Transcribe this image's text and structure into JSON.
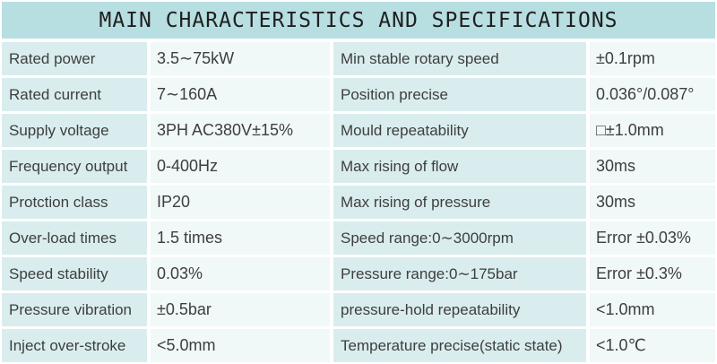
{
  "title": "MAIN CHARACTERISTICS AND SPECIFICATIONS",
  "colors": {
    "header_bg": "#b7dee1",
    "label_bg": "#d9edee",
    "value_bg": "#f0f8f8",
    "text": "#3e3e3e"
  },
  "table": {
    "rows": [
      {
        "label_left": "Rated power",
        "value_left": "3.5∼75kW",
        "label_right": "Min stable rotary speed",
        "value_right": "±0.1rpm"
      },
      {
        "label_left": "Rated current",
        "value_left": "7∼160A",
        "label_right": "Position precise",
        "value_right": "0.036°/0.087°"
      },
      {
        "label_left": "Supply voltage",
        "value_left": "3PH AC380V±15%",
        "label_right": "Mould repeatability",
        "value_right": "□±1.0mm"
      },
      {
        "label_left": "Frequency output",
        "value_left": "0-400Hz",
        "label_right": "Max rising of flow",
        "value_right": "30ms"
      },
      {
        "label_left": "Protction class",
        "value_left": "IP20",
        "label_right": "Max rising of pressure",
        "value_right": "30ms"
      },
      {
        "label_left": "Over-load times",
        "value_left": "1.5 times",
        "label_right": "Speed range:0∼3000rpm",
        "value_right": "Error ±0.03%"
      },
      {
        "label_left": "Speed stability",
        "value_left": "0.03%",
        "label_right": "Pressure range:0∼175bar",
        "value_right": "Error ±0.3%"
      },
      {
        "label_left": "Pressure vibration",
        "value_left": "±0.5bar",
        "label_right": "pressure-hold repeatability",
        "value_right": "<1.0mm"
      },
      {
        "label_left": "Inject over-stroke",
        "value_left": "<5.0mm",
        "label_right": "Temperature precise(static state)",
        "value_right": "<1.0℃"
      }
    ]
  }
}
